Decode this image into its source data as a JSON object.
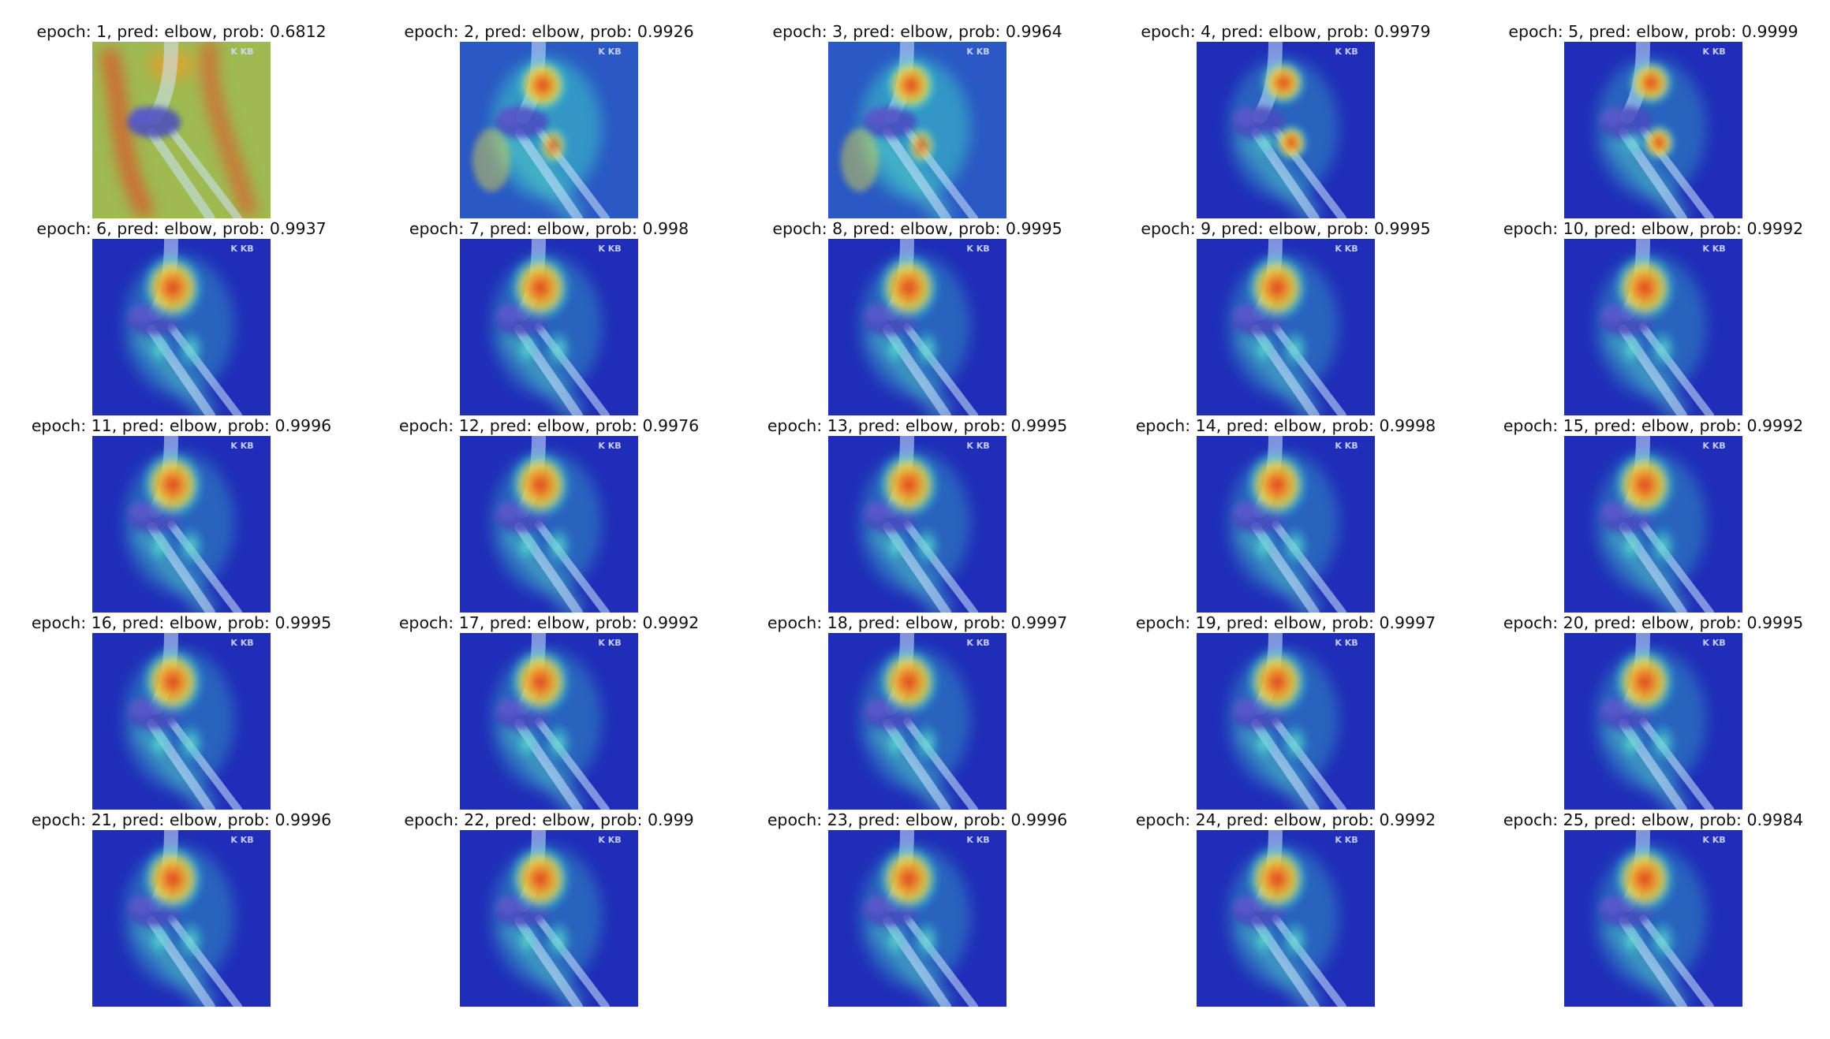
{
  "figure": {
    "grid": {
      "rows": 5,
      "columns": 5
    },
    "panels": [
      {
        "epoch": 1,
        "pred": "elbow",
        "prob": "0.6812",
        "title": "epoch: 1, pred: elbow, prob: 0.6812",
        "heatmap_style": "warm-diffuse"
      },
      {
        "epoch": 2,
        "pred": "elbow",
        "prob": "0.9926",
        "title": "epoch: 2, pred: elbow, prob: 0.9926",
        "heatmap_style": "mixed"
      },
      {
        "epoch": 3,
        "pred": "elbow",
        "prob": "0.9964",
        "title": "epoch: 3, pred: elbow, prob: 0.9964",
        "heatmap_style": "mixed"
      },
      {
        "epoch": 4,
        "pred": "elbow",
        "prob": "0.9979",
        "title": "epoch: 4, pred: elbow, prob: 0.9979",
        "heatmap_style": "focused-two-spot"
      },
      {
        "epoch": 5,
        "pred": "elbow",
        "prob": "0.9999",
        "title": "epoch: 5, pred: elbow, prob: 0.9999",
        "heatmap_style": "focused-two-spot"
      },
      {
        "epoch": 6,
        "pred": "elbow",
        "prob": "0.9937",
        "title": "epoch: 6, pred: elbow, prob: 0.9937",
        "heatmap_style": "focused"
      },
      {
        "epoch": 7,
        "pred": "elbow",
        "prob": "0.998",
        "title": "epoch: 7, pred: elbow, prob: 0.998",
        "heatmap_style": "focused"
      },
      {
        "epoch": 8,
        "pred": "elbow",
        "prob": "0.9995",
        "title": "epoch: 8, pred: elbow, prob: 0.9995",
        "heatmap_style": "focused"
      },
      {
        "epoch": 9,
        "pred": "elbow",
        "prob": "0.9995",
        "title": "epoch: 9, pred: elbow, prob: 0.9995",
        "heatmap_style": "focused"
      },
      {
        "epoch": 10,
        "pred": "elbow",
        "prob": "0.9992",
        "title": "epoch: 10, pred: elbow, prob: 0.9992",
        "heatmap_style": "focused"
      },
      {
        "epoch": 11,
        "pred": "elbow",
        "prob": "0.9996",
        "title": "epoch: 11, pred: elbow, prob: 0.9996",
        "heatmap_style": "focused"
      },
      {
        "epoch": 12,
        "pred": "elbow",
        "prob": "0.9976",
        "title": "epoch: 12, pred: elbow, prob: 0.9976",
        "heatmap_style": "focused"
      },
      {
        "epoch": 13,
        "pred": "elbow",
        "prob": "0.9995",
        "title": "epoch: 13, pred: elbow, prob: 0.9995",
        "heatmap_style": "focused"
      },
      {
        "epoch": 14,
        "pred": "elbow",
        "prob": "0.9998",
        "title": "epoch: 14, pred: elbow, prob: 0.9998",
        "heatmap_style": "focused"
      },
      {
        "epoch": 15,
        "pred": "elbow",
        "prob": "0.9992",
        "title": "epoch: 15, pred: elbow, prob: 0.9992",
        "heatmap_style": "focused"
      },
      {
        "epoch": 16,
        "pred": "elbow",
        "prob": "0.9995",
        "title": "epoch: 16, pred: elbow, prob: 0.9995",
        "heatmap_style": "focused"
      },
      {
        "epoch": 17,
        "pred": "elbow",
        "prob": "0.9992",
        "title": "epoch: 17, pred: elbow, prob: 0.9992",
        "heatmap_style": "focused"
      },
      {
        "epoch": 18,
        "pred": "elbow",
        "prob": "0.9997",
        "title": "epoch: 18, pred: elbow, prob: 0.9997",
        "heatmap_style": "focused"
      },
      {
        "epoch": 19,
        "pred": "elbow",
        "prob": "0.9997",
        "title": "epoch: 19, pred: elbow, prob: 0.9997",
        "heatmap_style": "focused"
      },
      {
        "epoch": 20,
        "pred": "elbow",
        "prob": "0.9995",
        "title": "epoch: 20, pred: elbow, prob: 0.9995",
        "heatmap_style": "focused"
      },
      {
        "epoch": 21,
        "pred": "elbow",
        "prob": "0.9996",
        "title": "epoch: 21, pred: elbow, prob: 0.9996",
        "heatmap_style": "focused"
      },
      {
        "epoch": 22,
        "pred": "elbow",
        "prob": "0.999",
        "title": "epoch: 22, pred: elbow, prob: 0.999",
        "heatmap_style": "focused"
      },
      {
        "epoch": 23,
        "pred": "elbow",
        "prob": "0.9996",
        "title": "epoch: 23, pred: elbow, prob: 0.9996",
        "heatmap_style": "focused"
      },
      {
        "epoch": 24,
        "pred": "elbow",
        "prob": "0.9992",
        "title": "epoch: 24, pred: elbow, prob: 0.9992",
        "heatmap_style": "focused"
      },
      {
        "epoch": 25,
        "pred": "elbow",
        "prob": "0.9984",
        "title": "epoch: 25, pred: elbow, prob: 0.9984",
        "heatmap_style": "focused"
      }
    ],
    "watermark_text": "K KB",
    "colors": {
      "background": "#ffffff",
      "title_text": "#111111",
      "heatmap_low": "#1f2db8",
      "heatmap_mid": "#3cc8c8",
      "heatmap_warm": "#e8e040",
      "heatmap_hot": "#e03a1c"
    }
  }
}
